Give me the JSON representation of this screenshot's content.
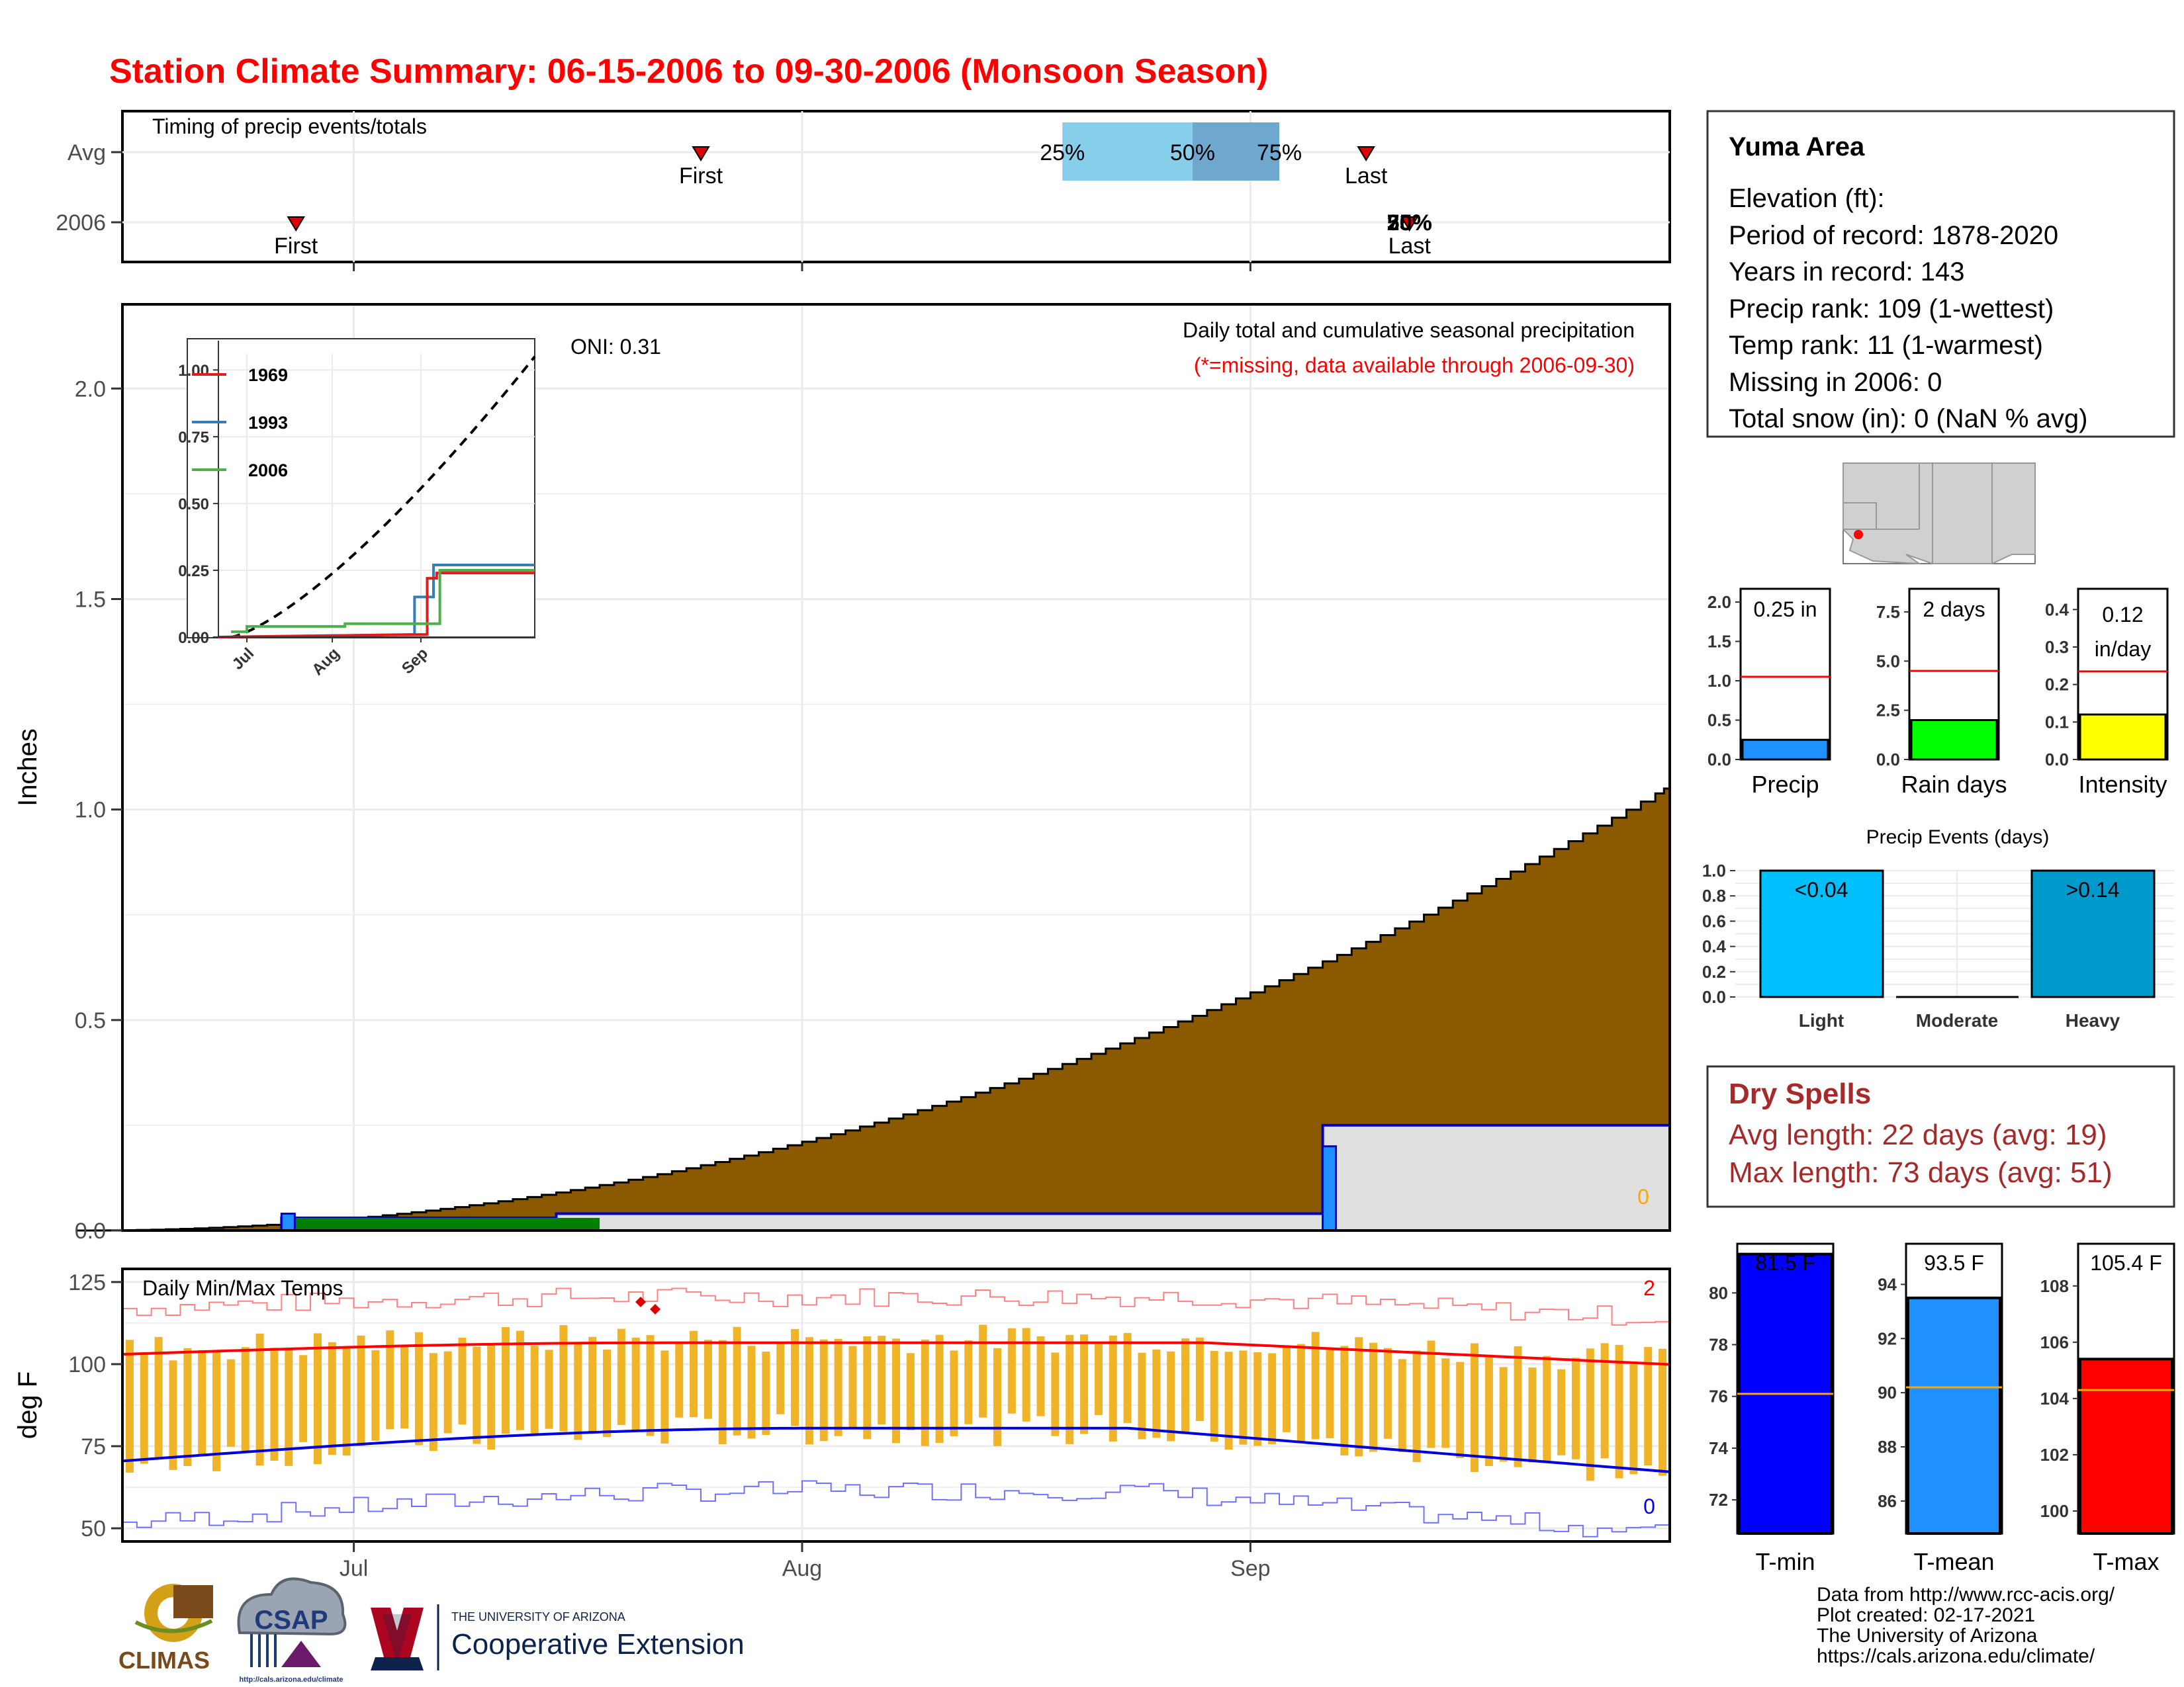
{
  "title": "Station Climate Summary: 06-15-2006 to 09-30-2006 (Monsoon Season)",
  "timing": {
    "title": "Timing of precip events/totals",
    "rows": [
      "Avg",
      "2006"
    ],
    "avg": {
      "first_doy": 206,
      "last_doy": 252,
      "q25_doy": 231,
      "q50_doy": 240,
      "q75_doy": 246
    },
    "y2006": {
      "first_doy": 178,
      "last_doy": 255
    },
    "labels": {
      "first": "First",
      "last": "Last",
      "q25": "25%",
      "q50": "50%",
      "q75": "75%",
      "overlap": "50%"
    }
  },
  "main_chart": {
    "ylabel": "Inches",
    "annotation_title": "Daily total and cumulative seasonal precipitation",
    "annotation_missing": "(*=missing, data available through 2006-09-30)",
    "oni": "ONI: 0.31",
    "missing_count": "0",
    "ylim": [
      0,
      2.2
    ],
    "yticks": [
      "0.0",
      "0.5",
      "1.0",
      "1.5",
      "2.0"
    ],
    "xticks": [
      {
        "label": "Jul",
        "doy": 182
      },
      {
        "label": "Aug",
        "doy": 213
      },
      {
        "label": "Sep",
        "doy": 244
      }
    ],
    "xlim_doy": [
      166,
      273
    ],
    "cumulative_avg_start": 162.8,
    "cumulative_avg_end": 272.6,
    "cumulative_avg_final": 1.05,
    "obs_2006_steps": [
      {
        "doy": 177,
        "value": 0.03
      },
      {
        "doy": 196,
        "value": 0.04
      },
      {
        "doy": 249,
        "value": 0.25
      }
    ],
    "daily_bars": [
      {
        "doy": 177,
        "value": 0.04
      },
      {
        "doy": 249,
        "value": 0.2
      }
    ]
  },
  "inset": {
    "yticks": [
      "0.00",
      "0.25",
      "0.50",
      "0.75",
      "1.00"
    ],
    "xticks": [
      "Jul",
      "Aug",
      "Sep"
    ],
    "legend": [
      {
        "name": "1969",
        "color": "#e41a1c"
      },
      {
        "name": "1993",
        "color": "#377eb8"
      },
      {
        "name": "2006",
        "color": "#4daf4a"
      }
    ]
  },
  "station": {
    "name": "Yuma Area",
    "lines": [
      "Elevation (ft):",
      "Period of record: 1878-2020",
      "Years in record: 143",
      "Precip rank: 109 (1-wettest)",
      "Temp rank: 11 (1-warmest)",
      "Missing in 2006: 0",
      "Total snow (in): 0 (NaN % avg)"
    ]
  },
  "small_bars": [
    {
      "label": "Precip",
      "value": 0.25,
      "avg": 1.05,
      "ymax": 2.0,
      "yticks": [
        "0.0",
        "0.5",
        "1.0",
        "1.5",
        "2.0"
      ],
      "text": "0.25 in",
      "color": "#1e90ff"
    },
    {
      "label": "Rain days",
      "value": 2,
      "avg": 4.5,
      "ymax": 8.0,
      "yticks": [
        "0.0",
        "2.5",
        "5.0",
        "7.5"
      ],
      "text": "2 days",
      "color": "#00ff00"
    },
    {
      "label": "Intensity",
      "value": 0.12,
      "avg": 0.235,
      "ymax": 0.42,
      "yticks": [
        "0.0",
        "0.1",
        "0.2",
        "0.3",
        "0.4"
      ],
      "text1": "0.12",
      "text2": "in/day",
      "color": "#ffff00"
    }
  ],
  "events": {
    "title": "Precip Events (days)",
    "yticks": [
      "0.0",
      "0.2",
      "0.4",
      "0.6",
      "0.8",
      "1.0"
    ],
    "bars": [
      {
        "label": "Light",
        "value": 1.0,
        "text": "<0.04",
        "color": "#00bfff"
      },
      {
        "label": "Moderate",
        "value": 0.0,
        "text": "",
        "color": "#0099cc"
      },
      {
        "label": "Heavy",
        "value": 1.0,
        "text": ">0.14",
        "color": "#0099cc"
      }
    ]
  },
  "dry_spells": {
    "title": "Dry Spells",
    "avg": "Avg length: 22 days (avg: 19)",
    "max": "Max length: 73 days (avg: 51)"
  },
  "temps": {
    "title": "Daily Min/Max Temps",
    "ylabel": "deg F",
    "yticks": [
      "50",
      "75",
      "100",
      "125"
    ],
    "ylim": [
      46,
      129
    ],
    "record_high_count": "2",
    "record_low_count": "0"
  },
  "temp_bars": [
    {
      "label": "T-min",
      "value": 81.5,
      "avg": 76.1,
      "ymin": 70.7,
      "ymax": 81.9,
      "yticks": [
        72,
        74,
        76,
        78,
        80
      ],
      "text": "81.5 F",
      "color": "#0000ff"
    },
    {
      "label": "T-mean",
      "value": 93.5,
      "avg": 90.2,
      "ymin": 84.8,
      "ymax": 95.5,
      "yticks": [
        86,
        88,
        90,
        92,
        94
      ],
      "text": "93.5 F",
      "color": "#1e90ff"
    },
    {
      "label": "T-max",
      "value": 105.4,
      "avg": 104.3,
      "ymin": 99.2,
      "ymax": 109.5,
      "yticks": [
        100,
        102,
        104,
        106,
        108
      ],
      "text": "105.4 F",
      "color": "#ff0000"
    }
  ],
  "footer": {
    "lines": [
      "Data from http://www.rcc-acis.org/",
      "Plot created: 02-17-2021",
      "The University of Arizona",
      "https://cals.arizona.edu/climate/"
    ],
    "logos": {
      "climas": "CLIMAS",
      "csap": "CSAP",
      "csap_url": "http://cals.arizona.edu/climate",
      "ua_small": "THE UNIVERSITY OF ARIZONA",
      "ua_big": "Cooperative Extension"
    }
  }
}
